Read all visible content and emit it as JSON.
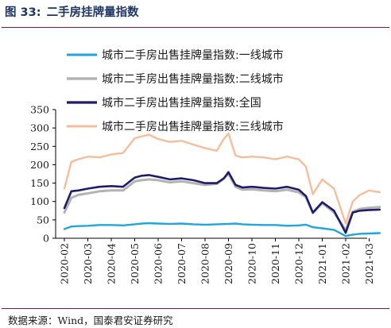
{
  "figure": {
    "number": "图 33:",
    "title": "二手房挂牌量指数",
    "source": "数据来源：Wind，国泰君安证券研究"
  },
  "chart_data": {
    "type": "line",
    "title": "",
    "xlabel": "",
    "ylabel": "",
    "ylim": [
      0,
      350
    ],
    "y_ticks": [
      0,
      50,
      100,
      150,
      200,
      250,
      300,
      350
    ],
    "grid": false,
    "legend_position": "top-right",
    "x_tick_labels": [
      "2020-02",
      "2020-03",
      "2020-04",
      "2020-05",
      "2020-06",
      "2020-07",
      "2020-08",
      "2020-09",
      "2020-10",
      "2020-11",
      "2020-12",
      "2021-01",
      "2021-02",
      "2021-03"
    ],
    "x_range": [
      0,
      13.45
    ],
    "series": [
      {
        "name": "城市二手房出售挂牌量指数:一线城市",
        "color": "#1ea6dd",
        "width": 2.4,
        "x": [
          0,
          0.3,
          0.6,
          1,
          1.5,
          2,
          2.5,
          3,
          3.3,
          3.6,
          4,
          4.5,
          5,
          5.5,
          6,
          6.5,
          7,
          7.3,
          7.6,
          8,
          8.5,
          9,
          9.5,
          10,
          10.3,
          10.6,
          11,
          11.5,
          12,
          12.3,
          12.6,
          13,
          13.45
        ],
        "values": [
          25,
          32,
          33,
          34,
          36,
          36,
          35,
          38,
          40,
          41,
          40,
          39,
          40,
          38,
          37,
          38,
          39,
          40,
          38,
          37,
          36,
          36,
          34,
          35,
          37,
          30,
          27,
          23,
          6,
          10,
          12,
          13,
          14
        ]
      },
      {
        "name": "城市二手房出售挂牌量指数:二线城市",
        "color": "#b3b3b3",
        "width": 3.0,
        "x": [
          0,
          0.3,
          0.6,
          1,
          1.5,
          2,
          2.5,
          3,
          3.3,
          3.6,
          4,
          4.5,
          5,
          5.5,
          6,
          6.5,
          6.8,
          7,
          7.3,
          7.6,
          8,
          8.5,
          9,
          9.5,
          10,
          10.3,
          10.6,
          11,
          11.5,
          12,
          12.3,
          12.6,
          13,
          13.45
        ],
        "values": [
          70,
          110,
          118,
          122,
          128,
          130,
          130,
          155,
          158,
          160,
          158,
          152,
          155,
          150,
          145,
          148,
          162,
          175,
          140,
          132,
          133,
          130,
          128,
          132,
          125,
          112,
          68,
          95,
          70,
          22,
          72,
          80,
          83,
          85
        ]
      },
      {
        "name": "城市二手房出售挂牌量指数:全国",
        "color": "#1f1d6b",
        "width": 2.6,
        "x": [
          0,
          0.3,
          0.6,
          1,
          1.5,
          2,
          2.5,
          3,
          3.3,
          3.6,
          4,
          4.5,
          5,
          5.5,
          6,
          6.5,
          6.8,
          7,
          7.3,
          7.6,
          8,
          8.5,
          9,
          9.5,
          10,
          10.3,
          10.6,
          11,
          11.5,
          12,
          12.3,
          12.6,
          13,
          13.45
        ],
        "values": [
          82,
          128,
          130,
          135,
          140,
          142,
          140,
          165,
          170,
          172,
          167,
          160,
          163,
          158,
          150,
          150,
          163,
          180,
          145,
          138,
          140,
          137,
          135,
          140,
          132,
          115,
          70,
          98,
          75,
          15,
          70,
          75,
          77,
          78
        ]
      },
      {
        "name": "城市二手房出售挂牌量指数:三线城市",
        "color": "#f6bd9a",
        "width": 2.4,
        "x": [
          0,
          0.3,
          0.6,
          1,
          1.5,
          2,
          2.5,
          3,
          3.3,
          3.6,
          4,
          4.5,
          5,
          5.5,
          6,
          6.5,
          6.8,
          7,
          7.3,
          7.6,
          8,
          8.5,
          9,
          9.5,
          10,
          10.3,
          10.6,
          11,
          11.5,
          12,
          12.3,
          12.6,
          13,
          13.45
        ],
        "values": [
          135,
          208,
          215,
          222,
          220,
          228,
          232,
          272,
          277,
          282,
          270,
          262,
          265,
          255,
          245,
          238,
          270,
          285,
          225,
          220,
          222,
          220,
          215,
          222,
          215,
          195,
          120,
          160,
          135,
          40,
          100,
          118,
          130,
          125
        ]
      }
    ]
  }
}
